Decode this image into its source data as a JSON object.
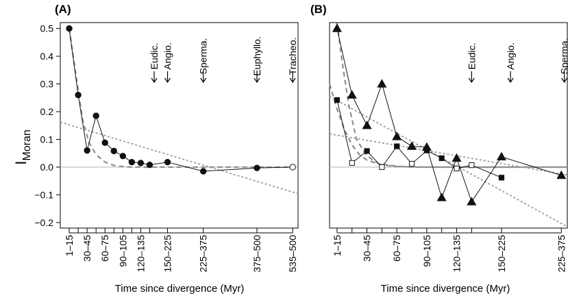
{
  "figure": {
    "y_axis_label_main": "I",
    "y_axis_label_sub": "Moran"
  },
  "chart_data": [
    {
      "type": "line",
      "panel_label": "(A)",
      "xlabel": "Time since divergence (Myr)",
      "ylabel": "IMoran",
      "ylim": [
        -0.22,
        0.52
      ],
      "y_ticks": [
        "0.5",
        "0.4",
        "0.3",
        "0.2",
        "0.1",
        "0.0",
        "−0.1",
        "−0.2"
      ],
      "y_tick_values": [
        0.5,
        0.4,
        0.3,
        0.2,
        0.1,
        0.0,
        -0.1,
        -0.2
      ],
      "x_tick_labels": [
        "1–15",
        "30–45",
        "60–75",
        "90–105",
        "120–135",
        "150–225",
        "225–375",
        "375–500",
        "535–500"
      ],
      "x_tick_positions": [
        1,
        3,
        5,
        7,
        9,
        12,
        16,
        22,
        26
      ],
      "minor_x_ticks": [
        1,
        2,
        3,
        4,
        5,
        6,
        7,
        8,
        9,
        10,
        12,
        16,
        22,
        26
      ],
      "xlim": [
        0,
        26.6
      ],
      "series": [
        {
          "marker": "circle",
          "x": [
            1,
            2,
            3,
            4,
            5,
            6,
            7,
            8,
            9,
            10,
            12,
            16,
            22,
            26
          ],
          "y": [
            0.5,
            0.26,
            0.06,
            0.185,
            0.088,
            0.058,
            0.04,
            0.018,
            0.015,
            0.008,
            0.018,
            -0.015,
            -0.003,
            0.0
          ],
          "hollow": [
            false,
            false,
            false,
            false,
            false,
            false,
            false,
            false,
            false,
            false,
            false,
            false,
            false,
            true
          ]
        }
      ],
      "fits": [
        {
          "kind": "dashed-dark",
          "x": [
            1,
            1.8,
            2.5,
            3.2,
            4,
            5,
            6,
            7,
            8,
            10,
            12,
            26
          ],
          "y": [
            0.5,
            0.32,
            0.17,
            0.09,
            0.045,
            0.018,
            0.006,
            0.002,
            0.0,
            0.0,
            0.0,
            0.0
          ]
        },
        {
          "kind": "dotted-light",
          "x": [
            0,
            26.6
          ],
          "y": [
            0.162,
            -0.096
          ]
        }
      ],
      "annotations": [
        {
          "text": "Eudic.",
          "x": 10.5
        },
        {
          "text": "Angio.",
          "x": 12
        },
        {
          "text": "Sperma.",
          "x": 16
        },
        {
          "text": "Euphyllo.",
          "x": 22
        },
        {
          "text": "Tracheo.",
          "x": 26
        }
      ]
    },
    {
      "type": "line",
      "panel_label": "(B)",
      "xlabel": "Time since divergence (Myr)",
      "ylabel": "IMoran",
      "ylim": [
        -0.22,
        0.52
      ],
      "x_tick_labels": [
        "1–15",
        "30–45",
        "60–75",
        "90–105",
        "120–135",
        "150–225",
        "225–375"
      ],
      "x_tick_positions": [
        1,
        3,
        5,
        7,
        9,
        12,
        16
      ],
      "minor_x_ticks": [
        1,
        2,
        3,
        4,
        5,
        6,
        7,
        8,
        9,
        10,
        12,
        16
      ],
      "xlim": [
        0.5,
        16.4
      ],
      "series": [
        {
          "marker": "triangle",
          "x": [
            1,
            2,
            3,
            4,
            5,
            6,
            7,
            8,
            9,
            10,
            12,
            16
          ],
          "y": [
            0.5,
            0.26,
            0.15,
            0.3,
            0.11,
            0.075,
            0.072,
            -0.11,
            0.032,
            -0.125,
            0.037,
            -0.03
          ],
          "hollow": [
            false,
            false,
            false,
            false,
            false,
            false,
            false,
            false,
            false,
            false,
            false,
            false
          ]
        },
        {
          "marker": "square",
          "x": [
            1,
            2,
            3,
            4,
            5,
            6,
            7,
            8,
            9,
            10,
            12
          ],
          "y": [
            0.242,
            0.015,
            0.058,
            0.0,
            0.075,
            0.012,
            0.06,
            0.032,
            -0.005,
            0.007,
            -0.038
          ],
          "hollow": [
            false,
            true,
            false,
            true,
            false,
            true,
            false,
            false,
            true,
            true,
            false
          ]
        }
      ],
      "fits": [
        {
          "kind": "dashed-dark",
          "x": [
            1,
            1.4,
            1.8,
            2.3,
            3,
            3.8,
            5,
            6,
            8,
            10,
            12,
            16.4
          ],
          "y": [
            0.52,
            0.36,
            0.22,
            0.1,
            0.04,
            0.012,
            0.003,
            0.0,
            0.0,
            0.0,
            0.0,
            0.0
          ]
        },
        {
          "kind": "dashed-dark",
          "x": [
            0.5,
            1,
            1.5,
            2,
            2.5,
            3,
            4,
            5,
            7,
            10,
            16.4
          ],
          "y": [
            0.3,
            0.21,
            0.135,
            0.08,
            0.045,
            0.025,
            0.008,
            0.002,
            0.0,
            0.0,
            0.0
          ]
        },
        {
          "kind": "dotted-light",
          "x": [
            0.5,
            16.4
          ],
          "y": [
            0.255,
            -0.215
          ]
        },
        {
          "kind": "dotted-light",
          "x": [
            0.5,
            16.4
          ],
          "y": [
            0.12,
            -0.028
          ]
        }
      ],
      "annotations": [
        {
          "text": "Eudic.",
          "x": 10
        },
        {
          "text": "Angio.",
          "x": 12.6
        },
        {
          "text": "Sperma.",
          "x": 16.2
        }
      ]
    }
  ]
}
